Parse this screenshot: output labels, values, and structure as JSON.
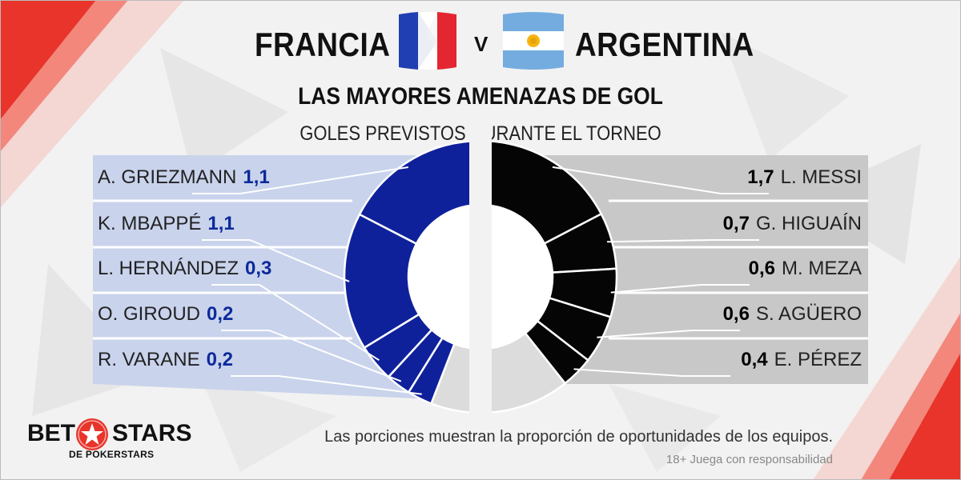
{
  "header": {
    "team_a": "FRANCIA",
    "versus": "V",
    "team_b": "ARGENTINA"
  },
  "title": "LAS MAYORES AMENAZAS DE GOL",
  "subtitle": "GOLES PREVISTOS DURANTE EL TORNEO",
  "chart_data": {
    "type": "pie",
    "style": "split-donut",
    "title": "LAS MAYORES AMENAZAS DE GOL",
    "subtitle": "GOLES PREVISTOS DURANTE EL TORNEO",
    "legend_position": "left-and-right",
    "groups": [
      {
        "team": "FRANCIA",
        "side": "left",
        "color": "#0f219a",
        "panel_color": "#c9d3ec",
        "remainder_color": "#dcdcdc",
        "remainder_share": 0.1,
        "players": [
          {
            "name": "A. GRIEZMANN",
            "label": "1,1",
            "value": 1.1
          },
          {
            "name": "K. MBAPPÉ",
            "label": "1,1",
            "value": 1.1
          },
          {
            "name": "L. HERNÁNDEZ",
            "label": "0,3",
            "value": 0.3
          },
          {
            "name": "O. GIROUD",
            "label": "0,2",
            "value": 0.2
          },
          {
            "name": "R. VARANE",
            "label": "0,2",
            "value": 0.2
          }
        ]
      },
      {
        "team": "ARGENTINA",
        "side": "right",
        "color": "#050505",
        "panel_color": "#c8c8c8",
        "remainder_color": "#dcdcdc",
        "remainder_share": 0.2,
        "players": [
          {
            "name": "L. MESSI",
            "label": "1,7",
            "value": 1.7
          },
          {
            "name": "G. HIGUAÍN",
            "label": "0,7",
            "value": 0.7
          },
          {
            "name": "M. MEZA",
            "label": "0,6",
            "value": 0.6
          },
          {
            "name": "S. AGÜERO",
            "label": "0,6",
            "value": 0.6
          },
          {
            "name": "E. PÉREZ",
            "label": "0,4",
            "value": 0.4
          }
        ]
      }
    ]
  },
  "footnote": "Las porciones muestran la proporción de oportunidades de los equipos.",
  "disclaimer": "18+ Juega con responsabilidad",
  "logo": {
    "bet": "BET",
    "stars": "STARS",
    "sub": "DE POKERSTARS"
  },
  "colors": {
    "accent_red": "#e8342a",
    "france_blue": "#0f219a",
    "argentina_black": "#050505"
  }
}
